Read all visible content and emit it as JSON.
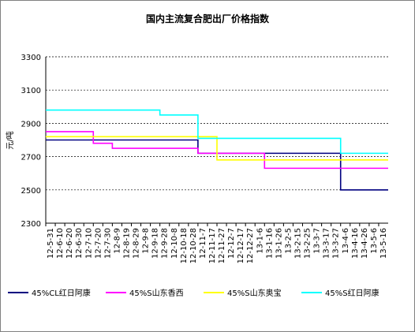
{
  "chart_data": {
    "type": "line",
    "title": "国内主流复合肥出厂价格指数",
    "y_label": "元/吨",
    "step": true,
    "grid": true,
    "legend": "bottom",
    "categories": [
      "12-5-31",
      "12-6-10",
      "12-6-20",
      "12-6-30",
      "12-7-10",
      "12-7-20",
      "12-7-30",
      "12-8-9",
      "12-8-19",
      "12-8-29",
      "12-9-8",
      "12-9-18",
      "12-9-28",
      "12-10-8",
      "12-10-18",
      "12-10-28",
      "12-11-7",
      "12-11-17",
      "12-11-27",
      "12-12-7",
      "12-12-17",
      "12-12-27",
      "13-1-6",
      "13-1-16",
      "13-1-26",
      "13-2-5",
      "13-2-15",
      "13-2-25",
      "13-3-7",
      "13-3-17",
      "13-3-27",
      "13-4-6",
      "13-4-16",
      "13-4-26",
      "13-5-6",
      "13-5-16"
    ],
    "ylim": [
      2300,
      3300
    ],
    "yticks": [
      2300,
      2500,
      2700,
      2900,
      3100,
      3300
    ],
    "series": [
      {
        "name": "45%CL红日阿康",
        "color": "#000080",
        "values": [
          2800,
          2800,
          2800,
          2800,
          2800,
          2800,
          2800,
          2800,
          2800,
          2800,
          2800,
          2800,
          2800,
          2800,
          2800,
          2800,
          2720,
          2720,
          2720,
          2720,
          2720,
          2720,
          2720,
          2720,
          2720,
          2720,
          2720,
          2720,
          2720,
          2720,
          2720,
          2500,
          2500,
          2500,
          2500,
          2500
        ]
      },
      {
        "name": "45%S山东香西",
        "color": "#ff00ff",
        "values": [
          2850,
          2850,
          2850,
          2850,
          2850,
          2780,
          2780,
          2750,
          2750,
          2750,
          2750,
          2750,
          2750,
          2750,
          2750,
          2750,
          2720,
          2720,
          2720,
          2720,
          2720,
          2720,
          2720,
          2630,
          2630,
          2630,
          2630,
          2630,
          2630,
          2630,
          2630,
          2630,
          2630,
          2630,
          2630,
          2630
        ]
      },
      {
        "name": "45%S山东奥宝",
        "color": "#ffff00",
        "values": [
          2820,
          2820,
          2820,
          2820,
          2820,
          2820,
          2820,
          2820,
          2820,
          2820,
          2820,
          2820,
          2820,
          2820,
          2820,
          2820,
          2820,
          2820,
          2680,
          2680,
          2680,
          2680,
          2680,
          2680,
          2680,
          2680,
          2680,
          2680,
          2680,
          2680,
          2680,
          2680,
          2680,
          2680,
          2680,
          2680
        ]
      },
      {
        "name": "45%S红日阿康",
        "color": "#00ffff",
        "values": [
          2980,
          2980,
          2980,
          2980,
          2980,
          2980,
          2980,
          2980,
          2980,
          2980,
          2980,
          2980,
          2950,
          2950,
          2950,
          2950,
          2810,
          2810,
          2810,
          2810,
          2810,
          2810,
          2810,
          2810,
          2810,
          2810,
          2810,
          2810,
          2810,
          2810,
          2810,
          2720,
          2720,
          2720,
          2720,
          2720
        ]
      }
    ]
  }
}
